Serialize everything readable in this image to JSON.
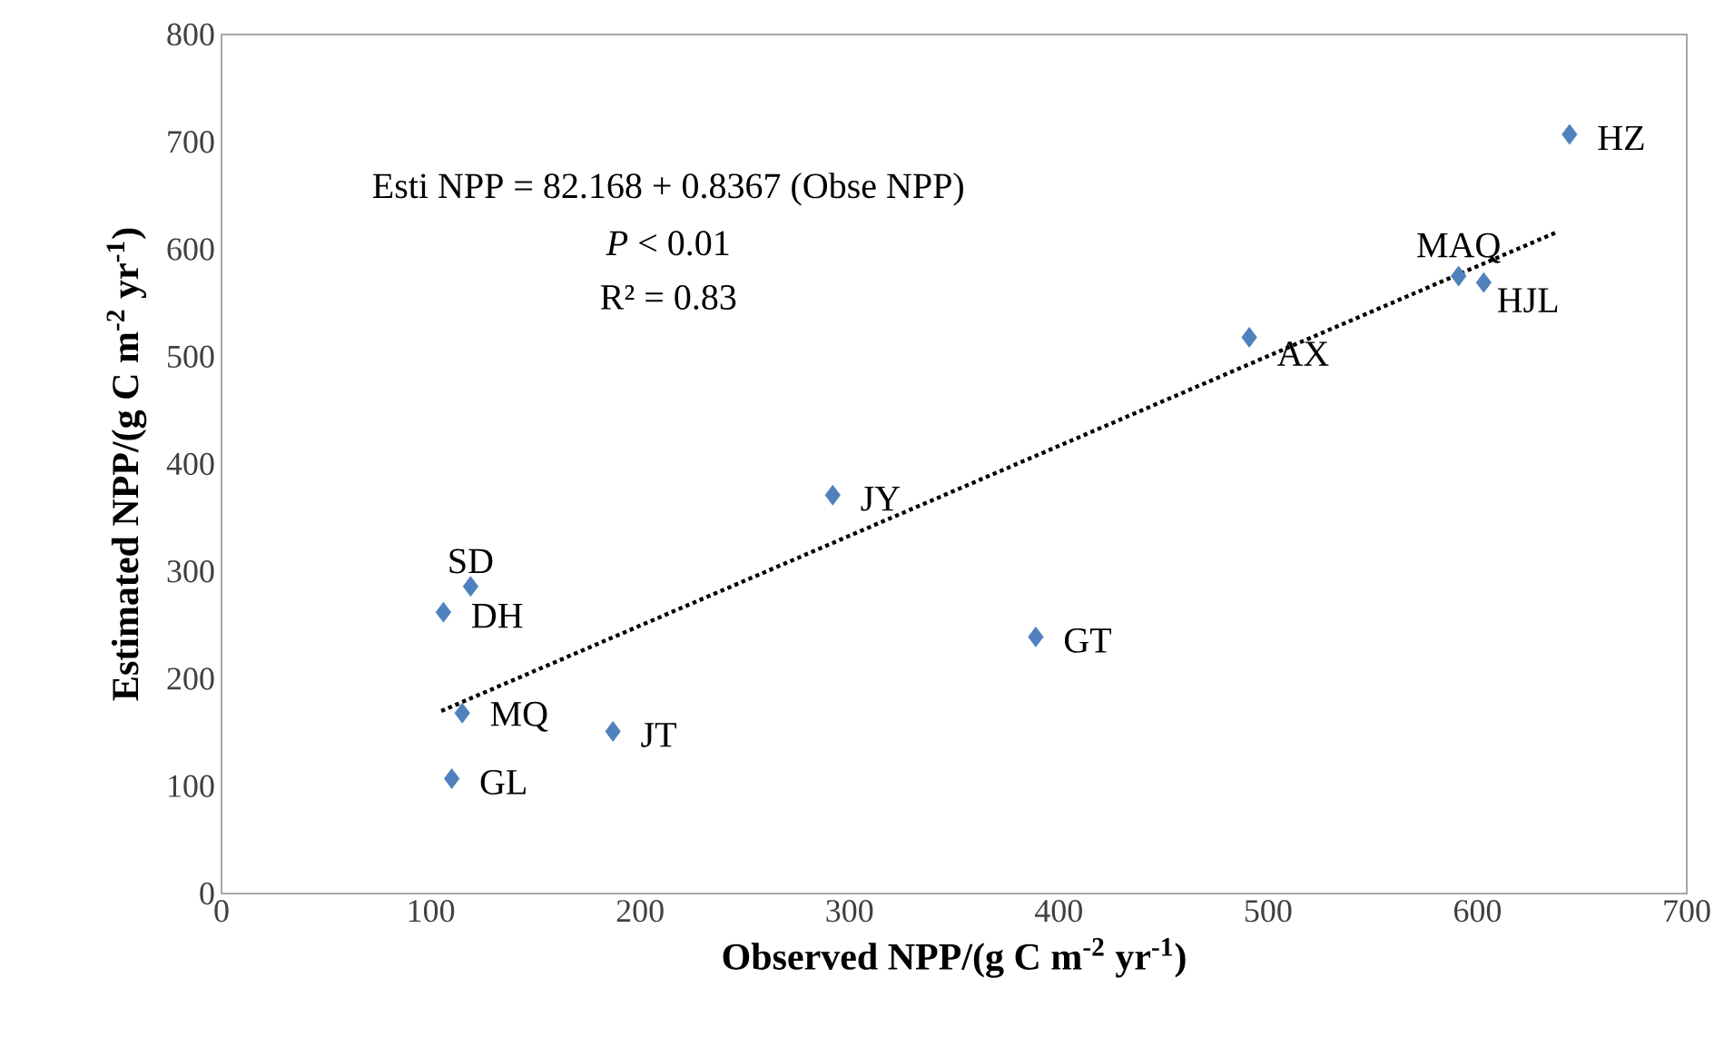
{
  "chart_data": {
    "type": "scatter",
    "xlabel": "Observed NPP/(g C m$^{-2}$ yr$^{-1}$)",
    "ylabel": "Estimated NPP/(g C m$^{-2}$ yr$^{-1}$)",
    "xlim": [
      0,
      700
    ],
    "xticks": [
      0,
      100,
      200,
      300,
      400,
      500,
      600,
      700
    ],
    "ylim": [
      0,
      800
    ],
    "yticks": [
      0,
      100,
      200,
      300,
      400,
      500,
      600,
      700,
      800
    ],
    "series": [
      {
        "color": "#4f81bd",
        "marker": "diamond",
        "x": [
          644,
          591,
          603,
          491,
          292,
          389,
          119,
          106,
          115,
          187,
          110
        ],
        "values": [
          707,
          575,
          569,
          518,
          371,
          239,
          286,
          262,
          168,
          151,
          107
        ]
      },
      {
        "type": "line",
        "color": "#000000",
        "marker": "none",
        "line_style": "dotted",
        "x": [
          105,
          638
        ],
        "values": [
          170.0,
          616.0
        ]
      }
    ],
    "annotations": [
      "Esti NPP = 82.168 + 0.8367 (Obse NPP)",
      "*P* < 0.01",
      "R² = 0.83",
      {
        "text": "HZ",
        "x": 644,
        "y": 707
      },
      {
        "text": "MAQ",
        "x": 591,
        "y": 575
      },
      {
        "text": "HJL",
        "x": 603,
        "y": 569
      },
      {
        "text": "AX",
        "x": 491,
        "y": 518
      },
      {
        "text": "JY",
        "x": 292,
        "y": 371
      },
      {
        "text": "GT",
        "x": 389,
        "y": 239
      },
      {
        "text": "SD",
        "x": 119,
        "y": 286
      },
      {
        "text": "DH",
        "x": 106,
        "y": 262
      },
      {
        "text": "MQ",
        "x": 115,
        "y": 168
      },
      {
        "text": "JT",
        "x": 187,
        "y": 151
      },
      {
        "text": "GL",
        "x": 110,
        "y": 107
      }
    ]
  }
}
